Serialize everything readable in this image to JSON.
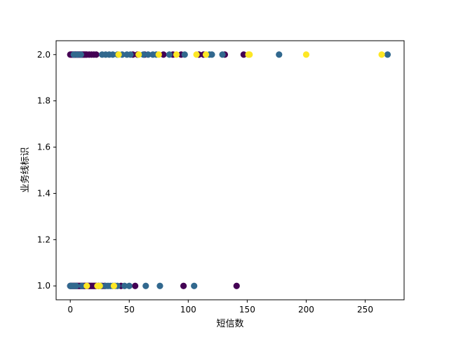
{
  "chart_data": {
    "type": "scatter",
    "title": "",
    "xlabel": "短信数",
    "ylabel": "业务线标识",
    "xlim": [
      -12,
      283
    ],
    "ylim": [
      0.94,
      2.06
    ],
    "xticks": [
      0,
      50,
      100,
      150,
      200,
      250
    ],
    "yticks": [
      1.0,
      1.2,
      1.4,
      1.6,
      1.8,
      2.0
    ],
    "grid": false,
    "legend": "none",
    "colors": {
      "purple": "#440154",
      "teal": "#31688e",
      "yellow": "#fde725"
    },
    "series": [
      {
        "color": "#440154",
        "x": [
          0,
          1,
          2,
          3,
          4,
          5,
          6,
          7,
          8,
          9,
          10,
          11,
          12,
          13,
          14,
          16,
          18,
          20,
          22,
          53,
          57,
          63,
          79,
          87,
          94,
          109,
          113,
          131,
          147,
          0,
          1,
          2,
          3,
          4,
          5,
          6,
          7,
          8,
          9,
          10,
          11,
          12,
          13,
          14,
          15,
          16,
          17,
          18,
          19,
          20,
          21,
          22,
          24,
          27,
          29,
          43,
          55,
          96,
          141
        ],
        "y": [
          2,
          2,
          2,
          2,
          2,
          2,
          2,
          2,
          2,
          2,
          2,
          2,
          2,
          2,
          2,
          2,
          2,
          2,
          2,
          2,
          2,
          2,
          2,
          2,
          2,
          2,
          2,
          2,
          2,
          1,
          1,
          1,
          1,
          1,
          1,
          1,
          1,
          1,
          1,
          1,
          1,
          1,
          1,
          1,
          1,
          1,
          1,
          1,
          1,
          1,
          1,
          1,
          1,
          1,
          1,
          1,
          1,
          1,
          1
        ]
      },
      {
        "color": "#31688e",
        "x": [
          3,
          6,
          9,
          27,
          30,
          33,
          36,
          40,
          44,
          48,
          51,
          62,
          66,
          70,
          73,
          84,
          97,
          118,
          120,
          129,
          177,
          269,
          0,
          1,
          3,
          5,
          10,
          26,
          30,
          32,
          34,
          36,
          38,
          40,
          46,
          50,
          64,
          76,
          105
        ],
        "y": [
          2,
          2,
          2,
          2,
          2,
          2,
          2,
          2,
          2,
          2,
          2,
          2,
          2,
          2,
          2,
          2,
          2,
          2,
          2,
          2,
          2,
          2,
          1,
          1,
          1,
          1,
          1,
          1,
          1,
          1,
          1,
          1,
          1,
          1,
          1,
          1,
          1,
          1,
          1
        ]
      },
      {
        "color": "#fde725",
        "x": [
          41,
          58,
          75,
          90,
          107,
          115,
          151,
          152,
          200,
          264,
          14,
          23,
          25,
          37
        ],
        "y": [
          2,
          2,
          2,
          2,
          2,
          2,
          2,
          2,
          2,
          2,
          1,
          1,
          1,
          1
        ]
      }
    ]
  }
}
